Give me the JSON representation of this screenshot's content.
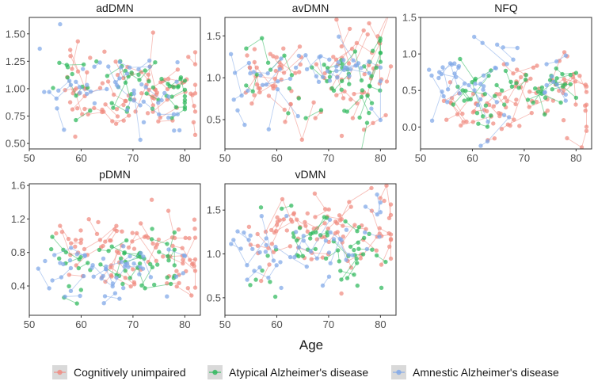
{
  "figure": {
    "xlabel": "Age",
    "colors": {
      "cu": "#F08A80",
      "atypical": "#2EB85C",
      "amnestic": "#7FA8E8",
      "panel_border": "#333333",
      "tick_text": "#4d4d4d"
    }
  },
  "legend": {
    "items": [
      {
        "key": "cu",
        "label": "Cognitively unimpaired"
      },
      {
        "key": "atypical",
        "label": "Atypical Alzheimer's disease"
      },
      {
        "key": "amnestic",
        "label": "Amnestic Alzheimer's disease"
      }
    ]
  },
  "chart_data": [
    {
      "type": "scatter",
      "title": "adDMN",
      "xlim": [
        50,
        83
      ],
      "ylim": [
        0.45,
        1.65
      ],
      "xticks": [
        50,
        60,
        70,
        80
      ],
      "yticks": [
        0.5,
        0.75,
        1.0,
        1.25,
        1.5
      ],
      "ytick_labels": [
        "0.50",
        "0.75",
        "1.00",
        "1.25",
        "1.50"
      ],
      "seed": 11,
      "series": [
        {
          "group": "cu",
          "n": 95,
          "center": 1.0,
          "spread": 0.18,
          "x_range": [
            54,
            82
          ]
        },
        {
          "group": "atypical",
          "n": 55,
          "center": 1.04,
          "spread": 0.18,
          "x_range": [
            54,
            80
          ]
        },
        {
          "group": "amnestic",
          "n": 55,
          "center": 1.02,
          "spread": 0.19,
          "x_range": [
            51,
            79
          ]
        }
      ]
    },
    {
      "type": "scatter",
      "title": "avDMN",
      "xlim": [
        50,
        83
      ],
      "ylim": [
        0.15,
        1.72
      ],
      "xticks": [
        50,
        60,
        70,
        80
      ],
      "yticks": [
        0.5,
        1.0,
        1.5
      ],
      "ytick_labels": [
        "0.5",
        "1.0",
        "1.5"
      ],
      "seed": 23,
      "series": [
        {
          "group": "cu",
          "n": 95,
          "center": 1.02,
          "spread": 0.24,
          "x_range": [
            54,
            82
          ]
        },
        {
          "group": "atypical",
          "n": 55,
          "center": 1.0,
          "spread": 0.23,
          "x_range": [
            54,
            80
          ]
        },
        {
          "group": "amnestic",
          "n": 55,
          "center": 0.98,
          "spread": 0.22,
          "x_range": [
            51,
            80
          ]
        }
      ]
    },
    {
      "type": "scatter",
      "title": "NFQ",
      "xlim": [
        50,
        83
      ],
      "ylim": [
        -0.3,
        1.5
      ],
      "xticks": [
        50,
        60,
        70,
        80
      ],
      "yticks": [
        0.0,
        0.5,
        1.0,
        1.5
      ],
      "ytick_labels": [
        "0.0",
        "0.5",
        "1.0",
        "1.5"
      ],
      "seed": 37,
      "series": [
        {
          "group": "cu",
          "n": 95,
          "center": 0.4,
          "spread": 0.25,
          "x_range": [
            54,
            82
          ]
        },
        {
          "group": "atypical",
          "n": 55,
          "center": 0.55,
          "spread": 0.25,
          "x_range": [
            54,
            80
          ]
        },
        {
          "group": "amnestic",
          "n": 55,
          "center": 0.65,
          "spread": 0.3,
          "x_range": [
            51,
            78
          ]
        }
      ]
    },
    {
      "type": "scatter",
      "title": "pDMN",
      "xlim": [
        50,
        83
      ],
      "ylim": [
        0.05,
        1.62
      ],
      "xticks": [
        50,
        60,
        70,
        80
      ],
      "yticks": [
        0.4,
        0.8,
        1.2,
        1.6
      ],
      "ytick_labels": [
        "0.4",
        "0.8",
        "1.2",
        "1.6"
      ],
      "seed": 41,
      "series": [
        {
          "group": "cu",
          "n": 95,
          "center": 0.85,
          "spread": 0.22,
          "x_range": [
            54,
            82
          ]
        },
        {
          "group": "atypical",
          "n": 55,
          "center": 0.65,
          "spread": 0.2,
          "x_range": [
            54,
            78
          ]
        },
        {
          "group": "amnestic",
          "n": 55,
          "center": 0.55,
          "spread": 0.18,
          "x_range": [
            51,
            80
          ]
        }
      ]
    },
    {
      "type": "scatter",
      "title": "vDMN",
      "xlim": [
        50,
        83
      ],
      "ylim": [
        0.3,
        1.8
      ],
      "xticks": [
        50,
        60,
        70,
        80
      ],
      "yticks": [
        0.5,
        1.0,
        1.5
      ],
      "ytick_labels": [
        "0.5",
        "1.0",
        "1.5"
      ],
      "seed": 53,
      "series": [
        {
          "group": "cu",
          "n": 95,
          "center": 1.25,
          "spread": 0.22,
          "x_range": [
            54,
            82
          ]
        },
        {
          "group": "atypical",
          "n": 55,
          "center": 1.05,
          "spread": 0.22,
          "x_range": [
            54,
            81
          ]
        },
        {
          "group": "amnestic",
          "n": 55,
          "center": 1.05,
          "spread": 0.24,
          "x_range": [
            51,
            80
          ]
        }
      ]
    }
  ]
}
